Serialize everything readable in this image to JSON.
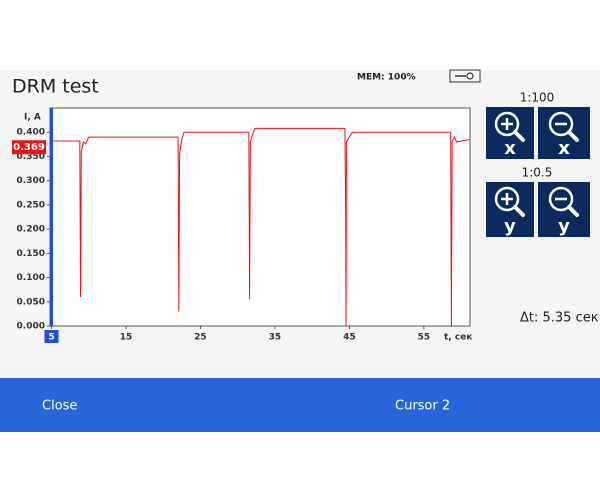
{
  "app": {
    "title": "DRM test",
    "memory": "MEM: 100%",
    "delta": "Δt: 5.35 сек",
    "zoom": {
      "x_scale": "1:100",
      "y_scale": "1:0.5",
      "buttons": [
        "x",
        "x",
        "y",
        "y"
      ]
    },
    "footer": {
      "left": "Close",
      "right": "Cursor 2"
    }
  },
  "chart_data": {
    "type": "line",
    "y_label": "I, A",
    "x_label": "t, сек",
    "color": "#e8141b",
    "x": [
      4.8,
      8.8,
      8.9,
      9.0,
      9.3,
      9.6,
      10.0,
      22.0,
      22.1,
      22.2,
      22.5,
      22.8,
      31.5,
      31.6,
      31.7,
      32.0,
      32.3,
      44.4,
      44.5,
      44.55,
      44.6,
      45.0,
      45.4,
      58.6,
      58.7,
      58.8,
      59.1,
      59.4,
      61.2
    ],
    "values": [
      0.382,
      0.382,
      0.06,
      0.36,
      0.38,
      0.376,
      0.39,
      0.39,
      0.03,
      0.355,
      0.385,
      0.4,
      0.4,
      0.055,
      0.38,
      0.395,
      0.408,
      0.408,
      0.24,
      0.0,
      0.38,
      0.39,
      0.4,
      0.4,
      0.0,
      0.38,
      0.39,
      0.38,
      0.385
    ],
    "xlim": [
      4.8,
      61.2
    ],
    "ylim": [
      0,
      0.45
    ],
    "xticks": [
      5,
      15,
      25,
      35,
      45,
      55
    ],
    "yticks": [
      {
        "value": 0,
        "label": "0.000"
      },
      {
        "value": 0.05,
        "label": "0.050"
      },
      {
        "value": 0.1,
        "label": "0.100"
      },
      {
        "value": 0.15,
        "label": "0.150"
      },
      {
        "value": 0.2,
        "label": "0.200"
      },
      {
        "value": 0.25,
        "label": "0.250"
      },
      {
        "value": 0.3,
        "label": "0.300"
      },
      {
        "value": 0.35,
        "label": "0.350"
      },
      {
        "value": 0.4,
        "label": "0.400"
      }
    ],
    "cursor": {
      "x": 5,
      "y": 0.369
    }
  }
}
